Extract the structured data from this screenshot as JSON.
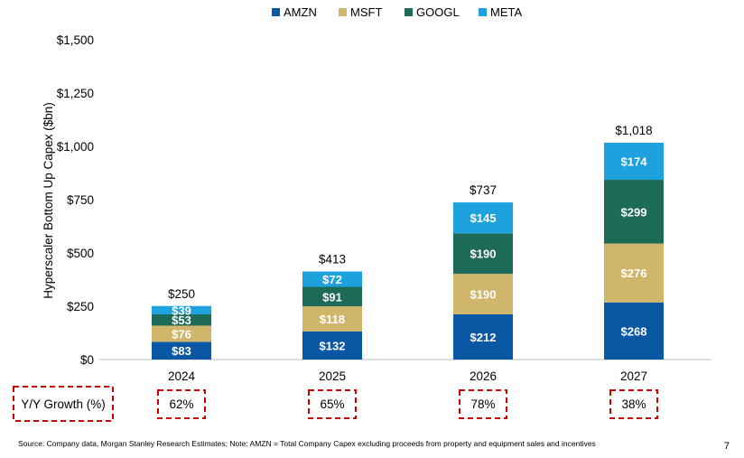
{
  "chart_data": {
    "type": "bar",
    "stacked": true,
    "categories": [
      "2024",
      "2025",
      "2026",
      "2027"
    ],
    "series": [
      {
        "name": "AMZN",
        "color": "#0a57a3",
        "values": [
          83,
          132,
          212,
          268
        ]
      },
      {
        "name": "MSFT",
        "color": "#cfb66b",
        "values": [
          76,
          118,
          190,
          276
        ]
      },
      {
        "name": "GOOGL",
        "color": "#1d6a57",
        "values": [
          53,
          91,
          190,
          299
        ]
      },
      {
        "name": "META",
        "color": "#1ea2dd",
        "values": [
          39,
          72,
          145,
          174
        ]
      }
    ],
    "segment_labels": [
      [
        "$83",
        "$132",
        "$212",
        "$268"
      ],
      [
        "$76",
        "$118",
        "$190",
        "$276"
      ],
      [
        "$53",
        "$91",
        "$190",
        "$299"
      ],
      [
        "$39",
        "$72",
        "$145",
        "$174"
      ]
    ],
    "totals": [
      250,
      413,
      737,
      1018
    ],
    "total_labels": [
      "$250",
      "$413",
      "$737",
      "$1,018"
    ],
    "ylabel": "Hyperscaler Bottom Up Capex ($bn)",
    "xlabel": "",
    "ylim": [
      0,
      1500
    ],
    "yticks": [
      0,
      250,
      500,
      750,
      1000,
      1250,
      1500
    ],
    "ytick_labels": [
      "$0",
      "$250",
      "$500",
      "$750",
      "$1,000",
      "$1,250",
      "$1,500"
    ],
    "legend_position": "top-center",
    "grid": false
  },
  "growth": {
    "label": "Y/Y Growth (%)",
    "values": [
      "62%",
      "65%",
      "78%",
      "38%"
    ]
  },
  "footnote": "Source: Company data, Morgan Stanley Research Estimates; Note: AMZN = Total Company Capex excluding proceeds from property and equipment sales and incentives",
  "page_number": "7"
}
